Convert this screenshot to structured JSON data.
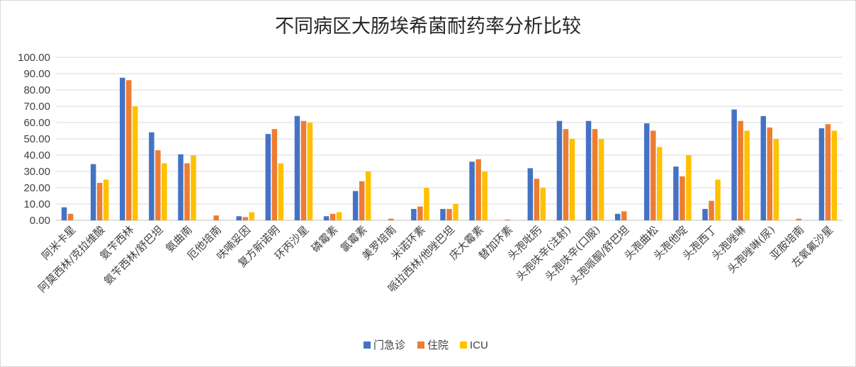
{
  "chart_data": {
    "type": "bar",
    "title": "不同病区大肠埃希菌耐药率分析比较",
    "xlabel": "",
    "ylabel": "",
    "ylim": [
      0,
      100
    ],
    "ytick_step": 10,
    "ytick_labels": [
      "0.00",
      "10.00",
      "20.00",
      "30.00",
      "40.00",
      "50.00",
      "60.00",
      "70.00",
      "80.00",
      "90.00",
      "100.00"
    ],
    "grid": true,
    "legend_position": "bottom",
    "categories": [
      "阿米卡星",
      "阿莫西林/克拉维酸",
      "氨苄西林",
      "氨苄西林/舒巴坦",
      "氨曲南",
      "厄他培南",
      "呋喃妥因",
      "复方新诺明",
      "环丙沙星",
      "磷霉素",
      "氯霉素",
      "美罗培南",
      "米诺环素",
      "哌拉西林/他唑巴坦",
      "庆大霉素",
      "替加环素",
      "头孢吡肟",
      "头孢呋辛(注射)",
      "头孢呋辛(口服)",
      "头孢哌酮/舒巴坦",
      "头孢曲松",
      "头孢他啶",
      "头孢西丁",
      "头孢唑啉",
      "头孢唑啉(尿)",
      "亚胺培南",
      "左氧氟沙星"
    ],
    "series": [
      {
        "name": "门急诊",
        "color": "#4472c4",
        "values": [
          8.0,
          34.5,
          87.5,
          54.0,
          40.5,
          0.0,
          2.5,
          53.0,
          64.0,
          2.5,
          18.0,
          0.0,
          7.0,
          7.0,
          36.0,
          0.0,
          32.0,
          61.0,
          61.0,
          4.0,
          59.5,
          33.0,
          7.0,
          68.0,
          64.0,
          0.0,
          56.5
        ]
      },
      {
        "name": "住院",
        "color": "#ed7d31",
        "values": [
          4.0,
          23.0,
          86.0,
          43.0,
          35.0,
          3.0,
          2.0,
          56.0,
          61.0,
          4.0,
          24.0,
          1.0,
          8.5,
          7.0,
          37.5,
          0.5,
          25.5,
          56.0,
          56.0,
          5.5,
          55.0,
          27.0,
          12.0,
          61.0,
          57.0,
          1.0,
          59.0
        ]
      },
      {
        "name": "ICU",
        "color": "#ffc000",
        "values": [
          0.0,
          25.0,
          70.0,
          35.0,
          40.0,
          0.0,
          5.0,
          35.0,
          60.0,
          5.0,
          30.0,
          0.0,
          20.0,
          10.0,
          30.0,
          0.0,
          20.0,
          50.0,
          50.0,
          0.0,
          45.0,
          40.0,
          25.0,
          55.0,
          50.0,
          0.0,
          55.0
        ]
      }
    ]
  }
}
